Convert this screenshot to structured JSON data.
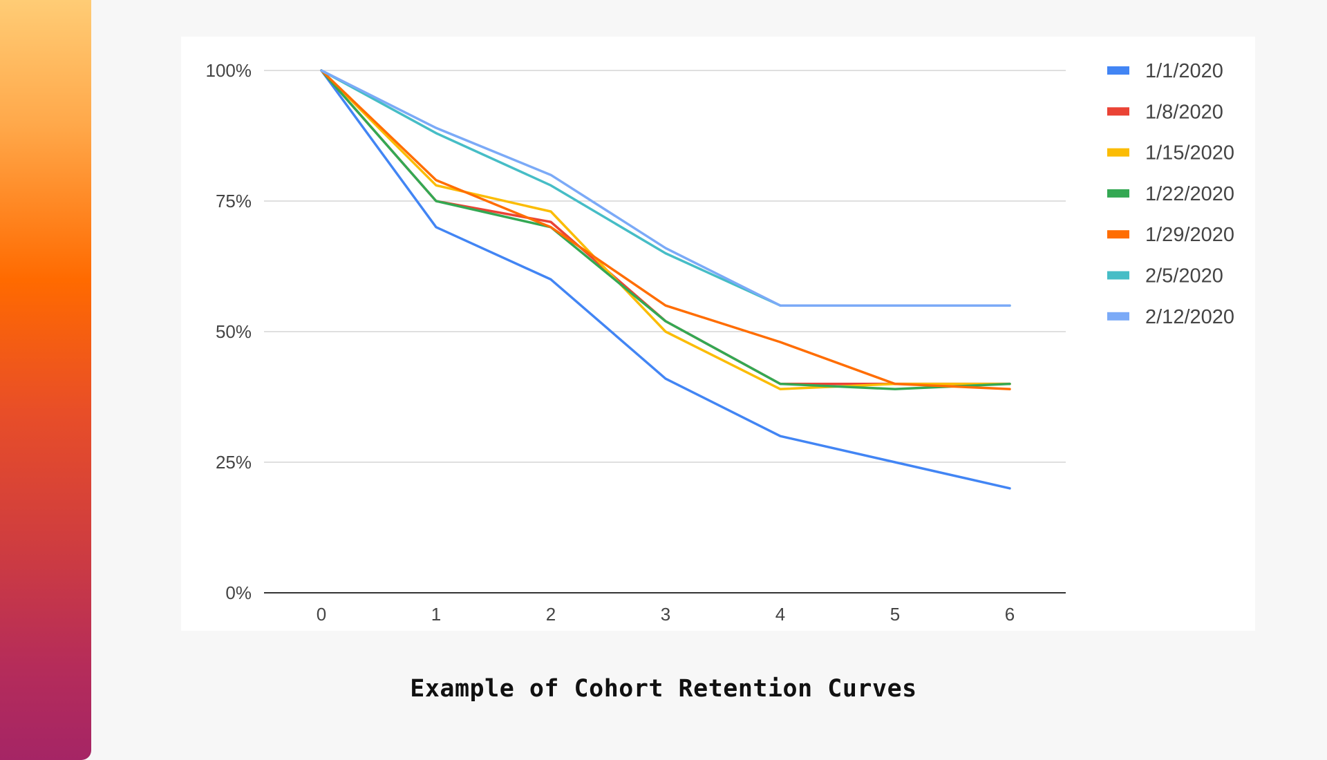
{
  "caption": "Example of Cohort Retention Curves",
  "chart_data": {
    "type": "line",
    "title": "",
    "xlabel": "",
    "ylabel": "",
    "x": [
      0,
      1,
      2,
      3,
      4,
      5,
      6
    ],
    "ylim": [
      0,
      100
    ],
    "yticks": [
      0,
      25,
      50,
      75,
      100
    ],
    "ytick_labels": [
      "0%",
      "25%",
      "50%",
      "75%",
      "100%"
    ],
    "grid": true,
    "legend_position": "right",
    "series": [
      {
        "name": "1/1/2020",
        "color": "#4285f4",
        "values": [
          100,
          70,
          60,
          41,
          30,
          25,
          20
        ]
      },
      {
        "name": "1/8/2020",
        "color": "#ea4335",
        "values": [
          100,
          75,
          71,
          52,
          40,
          40,
          40
        ]
      },
      {
        "name": "1/15/2020",
        "color": "#fbbc04",
        "values": [
          100,
          78,
          73,
          50,
          39,
          40,
          40
        ]
      },
      {
        "name": "1/22/2020",
        "color": "#34a853",
        "values": [
          100,
          75,
          70,
          52,
          40,
          39,
          40
        ]
      },
      {
        "name": "1/29/2020",
        "color": "#ff6d01",
        "values": [
          100,
          79,
          70,
          55,
          48,
          40,
          39
        ]
      },
      {
        "name": "2/5/2020",
        "color": "#46bdc6",
        "values": [
          100,
          88,
          78,
          65,
          55,
          55,
          55
        ]
      },
      {
        "name": "2/12/2020",
        "color": "#7baaf7",
        "values": [
          100,
          89,
          80,
          66,
          55,
          55,
          55
        ]
      }
    ]
  }
}
